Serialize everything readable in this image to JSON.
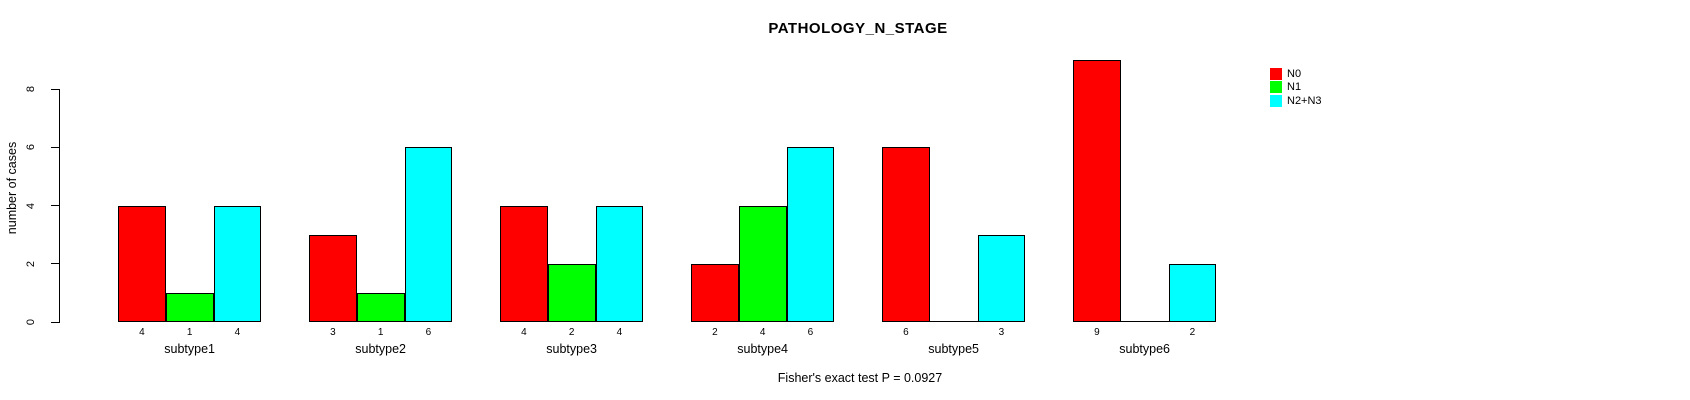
{
  "chart_data": {
    "type": "bar",
    "title": "PATHOLOGY_N_STAGE",
    "ylabel": "number of cases",
    "xlabel": "",
    "footer": "Fisher's exact test P = 0.0927",
    "categories": [
      "subtype1",
      "subtype2",
      "subtype3",
      "subtype4",
      "subtype5",
      "subtype6"
    ],
    "series": [
      {
        "name": "N0",
        "color": "#FF0000",
        "values": [
          4,
          3,
          4,
          2,
          6,
          9
        ]
      },
      {
        "name": "N1",
        "color": "#00FF00",
        "values": [
          1,
          1,
          2,
          4,
          0,
          0
        ]
      },
      {
        "name": "N2+N3",
        "color": "#00FFFF",
        "values": [
          4,
          6,
          4,
          6,
          3,
          2
        ]
      }
    ],
    "yticks": [
      0,
      2,
      4,
      6,
      8
    ],
    "ylim": [
      0,
      8
    ],
    "bar_value_labels_shown": true,
    "legend_position": "top-right",
    "grid": false,
    "background_color": "#FFFFFF",
    "axis_color": "#000000"
  }
}
